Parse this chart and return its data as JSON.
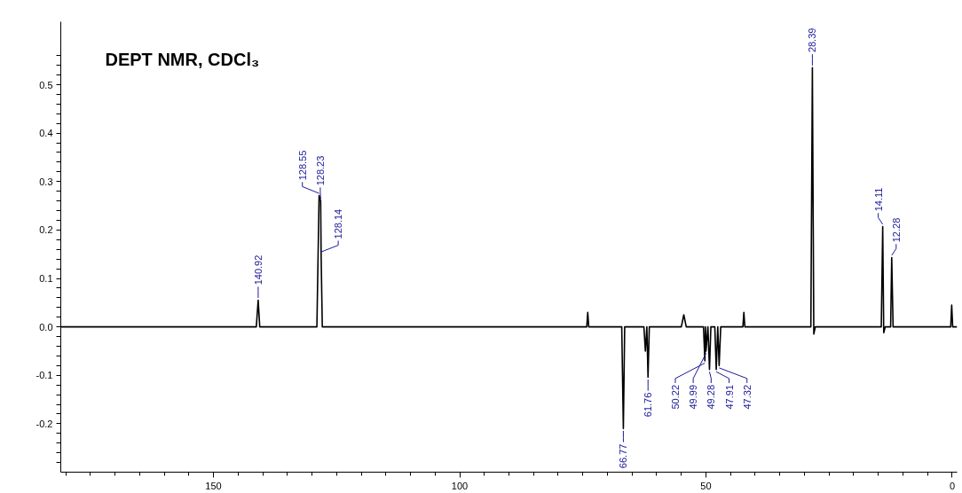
{
  "chart_data": {
    "type": "line",
    "title": "DEPT NMR, CDCl₃",
    "xlim": [
      181,
      -1
    ],
    "ylim": [
      -0.3,
      0.63
    ],
    "xticks": [
      {
        "value": 180,
        "label": null
      },
      {
        "value": 175,
        "label": null
      },
      {
        "value": 170,
        "label": null
      },
      {
        "value": 165,
        "label": null
      },
      {
        "value": 160,
        "label": null
      },
      {
        "value": 155,
        "label": null
      },
      150,
      {
        "value": 145,
        "label": null
      },
      {
        "value": 140,
        "label": null
      },
      {
        "value": 135,
        "label": null
      },
      {
        "value": 130,
        "label": null
      },
      {
        "value": 125,
        "label": null
      },
      {
        "value": 120,
        "label": null
      },
      {
        "value": 115,
        "label": null
      },
      {
        "value": 110,
        "label": null
      },
      {
        "value": 105,
        "label": null
      },
      100,
      {
        "value": 95,
        "label": null
      },
      {
        "value": 90,
        "label": null
      },
      {
        "value": 85,
        "label": null
      },
      {
        "value": 80,
        "label": null
      },
      {
        "value": 75,
        "label": null
      },
      {
        "value": 70,
        "label": null
      },
      {
        "value": 65,
        "label": null
      },
      {
        "value": 60,
        "label": null
      },
      {
        "value": 55,
        "label": null
      },
      50,
      {
        "value": 45,
        "label": null
      },
      {
        "value": 40,
        "label": null
      },
      {
        "value": 35,
        "label": null
      },
      {
        "value": 30,
        "label": null
      },
      {
        "value": 25,
        "label": null
      },
      {
        "value": 20,
        "label": null
      },
      {
        "value": 15,
        "label": null
      },
      {
        "value": 10,
        "label": null
      },
      {
        "value": 5,
        "label": null
      },
      0
    ],
    "yticks": [
      {
        "value": -0.28,
        "label": null
      },
      {
        "value": -0.26,
        "label": null
      },
      {
        "value": -0.24,
        "label": null
      },
      {
        "value": -0.22,
        "label": null
      },
      -0.2,
      {
        "value": -0.18,
        "label": null
      },
      {
        "value": -0.16,
        "label": null
      },
      {
        "value": -0.14,
        "label": null
      },
      {
        "value": -0.12,
        "label": null
      },
      -0.1,
      {
        "value": -0.08,
        "label": null
      },
      {
        "value": -0.06,
        "label": null
      },
      {
        "value": -0.04,
        "label": null
      },
      {
        "value": -0.02,
        "label": null
      },
      {
        "value": 0,
        "label": "0.0"
      },
      {
        "value": 0.02,
        "label": null
      },
      {
        "value": 0.04,
        "label": null
      },
      {
        "value": 0.06,
        "label": null
      },
      {
        "value": 0.08,
        "label": null
      },
      0.1,
      {
        "value": 0.12,
        "label": null
      },
      {
        "value": 0.14,
        "label": null
      },
      {
        "value": 0.16,
        "label": null
      },
      {
        "value": 0.18,
        "label": null
      },
      0.2,
      {
        "value": 0.22,
        "label": null
      },
      {
        "value": 0.24,
        "label": null
      },
      {
        "value": 0.26,
        "label": null
      },
      {
        "value": 0.28,
        "label": null
      },
      0.3,
      {
        "value": 0.32,
        "label": null
      },
      {
        "value": 0.34,
        "label": null
      },
      {
        "value": 0.36,
        "label": null
      },
      {
        "value": 0.38,
        "label": null
      },
      0.4,
      {
        "value": 0.42,
        "label": null
      },
      {
        "value": 0.44,
        "label": null
      },
      {
        "value": 0.46,
        "label": null
      },
      {
        "value": 0.48,
        "label": null
      },
      0.5,
      {
        "value": 0.52,
        "label": null
      },
      {
        "value": 0.54,
        "label": null
      },
      {
        "value": 0.56,
        "label": null
      }
    ],
    "grid": false,
    "marker": "none",
    "line_style": "solid",
    "series": [
      {
        "color": "#000000",
        "x": [
          181,
          141.3,
          140.92,
          140.6,
          129.0,
          128.55,
          128.23,
          128.14,
          127.9,
          74.2,
          74.0,
          73.8,
          67.1,
          66.77,
          66.5,
          62.6,
          62.3,
          62.0,
          61.76,
          61.5,
          55,
          54.5,
          54,
          50.5,
          50.22,
          50.1,
          49.99,
          49.6,
          49.28,
          49.0,
          48.2,
          47.91,
          47.6,
          47.32,
          47.0,
          42.5,
          42.3,
          42.1,
          28.7,
          28.39,
          28.1,
          27.8,
          14.4,
          14.11,
          13.9,
          13.6,
          12.5,
          12.28,
          12.0,
          0.3,
          0.1,
          -0.1,
          -1
        ],
        "values": [
          0.0,
          0.0,
          0.055,
          0.0,
          0.0,
          0.271,
          0.26,
          0.15,
          0.0,
          0.0,
          0.03,
          0.0,
          0.0,
          -0.21,
          0.0,
          0.0,
          -0.05,
          0.0,
          -0.104,
          0.0,
          0.0,
          0.025,
          0.0,
          0.0,
          -0.07,
          0.0,
          -0.05,
          0.0,
          -0.088,
          0.0,
          0.0,
          -0.088,
          0.0,
          -0.08,
          0.0,
          0.0,
          0.03,
          0.0,
          0.0,
          0.535,
          -0.015,
          0.0,
          0.0,
          0.207,
          -0.012,
          0.0,
          0.0,
          0.143,
          0.0,
          0.0,
          0.045,
          0.0,
          0.0
        ]
      }
    ],
    "annotations": [
      {
        "text": "140.92",
        "x": 140.92,
        "y": 0.055
      },
      {
        "text": "128.55",
        "x": 128.55,
        "y": 0.271
      },
      {
        "text": "128.23",
        "x": 128.23,
        "y": 0.26
      },
      {
        "text": "128.14",
        "x": 128.14,
        "y": 0.15
      },
      {
        "text": "66.77",
        "x": 66.77,
        "y": -0.21
      },
      {
        "text": "61.76",
        "x": 61.76,
        "y": -0.104
      },
      {
        "text": "50.22",
        "x": 50.22,
        "y": -0.07
      },
      {
        "text": "49.99",
        "x": 49.99,
        "y": -0.05
      },
      {
        "text": "49.28",
        "x": 49.28,
        "y": -0.088
      },
      {
        "text": "47.91",
        "x": 47.91,
        "y": -0.088
      },
      {
        "text": "47.32",
        "x": 47.32,
        "y": -0.08
      },
      {
        "text": "28.39",
        "x": 28.39,
        "y": 0.535
      },
      {
        "text": "14.11",
        "x": 14.11,
        "y": 0.207
      },
      {
        "text": "12.28",
        "x": 12.28,
        "y": 0.143
      }
    ]
  }
}
